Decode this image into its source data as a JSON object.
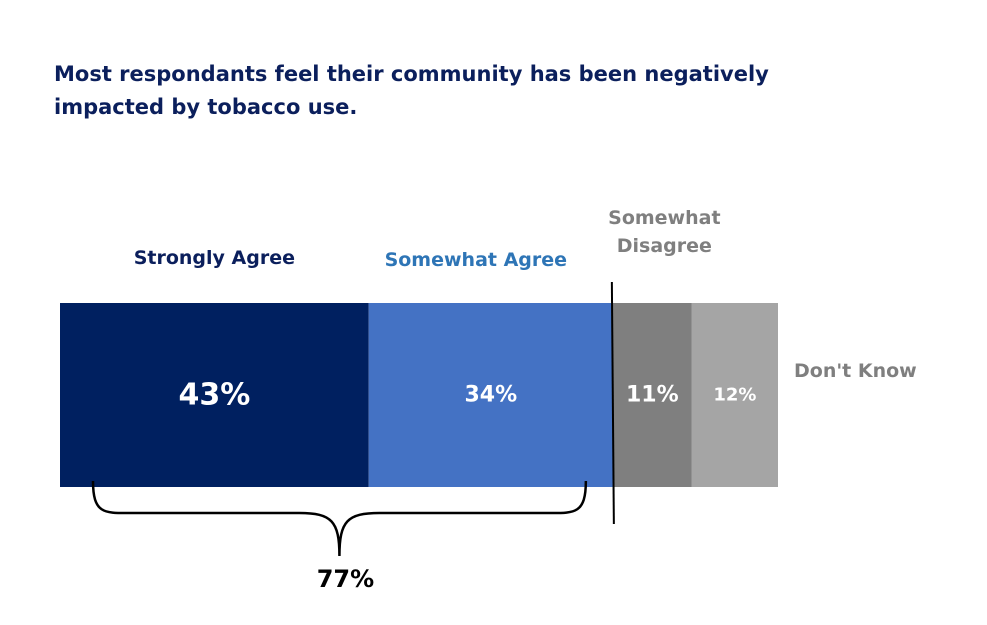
{
  "title_lines": [
    "Most respondants feel their community has been negatively",
    "impacted by tobacco use."
  ],
  "chart_data": {
    "type": "bar",
    "orientation": "horizontal",
    "stacked": true,
    "title": "Most respondants feel their community has been negatively impacted by tobacco use.",
    "xlabel": "",
    "ylabel": "",
    "categories": [
      "Strongly Agree",
      "Somewhat Agree",
      "Somewhat Disagree",
      "Don't Know"
    ],
    "category_label_lines": [
      [
        "Strongly Agree"
      ],
      [
        "Somewhat Agree"
      ],
      [
        "Somewhat",
        "Disagree"
      ],
      [
        "Don't Know"
      ]
    ],
    "values": [
      43,
      34,
      11,
      12
    ],
    "value_labels": [
      "43%",
      "34%",
      "11%",
      "12%"
    ],
    "colors": [
      "#002060",
      "#4472c4",
      "#7f7f7f",
      "#a5a5a5"
    ],
    "label_colors": [
      "#0b1f5c",
      "#2e75b6",
      "#7f7f7f",
      "#7f7f7f"
    ],
    "grouping": {
      "bracket_covers": [
        "Strongly Agree",
        "Somewhat Agree"
      ],
      "label": "77%"
    },
    "divider_after": "Somewhat Agree"
  }
}
